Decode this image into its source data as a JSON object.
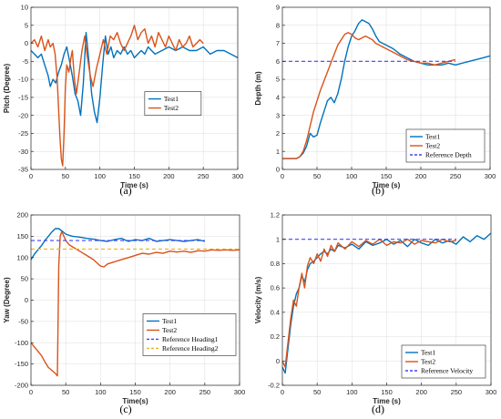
{
  "chart_data": [
    {
      "id": "a",
      "caption": "(a)",
      "type": "line",
      "xlabel": "Time (s)",
      "ylabel": "Pitch (Degree)",
      "xlim": [
        0,
        300
      ],
      "ylim": [
        -35,
        10
      ],
      "xticks": [
        0,
        50,
        100,
        150,
        200,
        250,
        300
      ],
      "yticks": [
        -35,
        -30,
        -25,
        -20,
        -15,
        -10,
        -5,
        0,
        5,
        10
      ],
      "grid": true,
      "legend": "center-right",
      "series": [
        {
          "name": "Test1",
          "color": "#0072BD",
          "style": "solid",
          "x": [
            0,
            5,
            10,
            15,
            20,
            25,
            28,
            32,
            36,
            40,
            44,
            48,
            52,
            56,
            60,
            64,
            68,
            72,
            76,
            80,
            84,
            88,
            92,
            96,
            100,
            104,
            108,
            112,
            116,
            120,
            125,
            130,
            135,
            140,
            145,
            150,
            155,
            160,
            165,
            170,
            175,
            180,
            190,
            200,
            210,
            220,
            230,
            240,
            250,
            260,
            270,
            280,
            290,
            300
          ],
          "y": [
            -2,
            -3,
            -4,
            -3,
            -6,
            -9,
            -12,
            -10,
            -11,
            -8,
            -6,
            -3,
            -1,
            -5,
            -9,
            -14,
            -16,
            -20,
            -11,
            3,
            -5,
            -14,
            -19,
            -22,
            -15,
            -6,
            2,
            -3,
            -1,
            -4,
            -2,
            -3,
            -1,
            -3,
            -2,
            -4,
            -3,
            -2,
            -3,
            -1,
            -2,
            -3,
            -2,
            -1,
            -2,
            -1,
            -2,
            -2,
            -1,
            -3,
            -2,
            -2,
            -3,
            -4
          ]
        },
        {
          "name": "Test2",
          "color": "#D95319",
          "style": "solid",
          "x": [
            0,
            5,
            10,
            15,
            20,
            25,
            28,
            32,
            35,
            38,
            40,
            42,
            44,
            46,
            48,
            50,
            52,
            55,
            58,
            60,
            63,
            66,
            70,
            74,
            78,
            82,
            86,
            90,
            95,
            100,
            105,
            110,
            115,
            120,
            125,
            130,
            135,
            140,
            145,
            150,
            155,
            160,
            165,
            170,
            175,
            180,
            185,
            190,
            195,
            200,
            205,
            210,
            215,
            220,
            225,
            230,
            235,
            240,
            245,
            250
          ],
          "y": [
            0,
            1,
            -1,
            2,
            -2,
            1,
            -1,
            0,
            -3,
            -10,
            -18,
            -26,
            -32,
            -34,
            -25,
            -12,
            -6,
            -8,
            -4,
            -2,
            -10,
            -14,
            -8,
            -2,
            2,
            -4,
            -9,
            -12,
            -7,
            -3,
            1,
            -3,
            2,
            1,
            3,
            0,
            -2,
            0,
            2,
            5,
            1,
            3,
            4,
            0,
            2,
            -1,
            3,
            1,
            -1,
            2,
            0,
            -2,
            1,
            -1,
            0,
            2,
            -1,
            0,
            1,
            0
          ]
        }
      ]
    },
    {
      "id": "b",
      "caption": "(b)",
      "type": "line",
      "xlabel": "Time (s)",
      "ylabel": "Depth (m)",
      "xlim": [
        0,
        300
      ],
      "ylim": [
        0,
        9
      ],
      "xticks": [
        0,
        50,
        100,
        150,
        200,
        250,
        300
      ],
      "yticks": [
        0,
        1,
        2,
        3,
        4,
        5,
        6,
        7,
        8,
        9
      ],
      "grid": true,
      "legend": "bottom-right",
      "series": [
        {
          "name": "Test1",
          "color": "#0072BD",
          "style": "solid",
          "x": [
            0,
            10,
            20,
            25,
            30,
            35,
            40,
            45,
            50,
            55,
            60,
            65,
            70,
            75,
            80,
            85,
            90,
            95,
            100,
            105,
            110,
            115,
            120,
            125,
            130,
            135,
            140,
            145,
            150,
            160,
            170,
            180,
            190,
            200,
            210,
            220,
            230,
            240,
            250,
            260,
            270,
            280,
            290,
            300
          ],
          "y": [
            0.6,
            0.6,
            0.6,
            0.7,
            0.9,
            1.3,
            2.0,
            1.8,
            1.9,
            2.6,
            3.2,
            3.8,
            4.0,
            3.7,
            4.2,
            5.0,
            6.0,
            6.8,
            7.4,
            7.7,
            8.1,
            8.3,
            8.2,
            8.1,
            7.8,
            7.4,
            7.1,
            7.0,
            6.9,
            6.7,
            6.4,
            6.2,
            6.0,
            5.9,
            5.8,
            5.8,
            5.8,
            5.9,
            5.8,
            5.9,
            6.0,
            6.1,
            6.2,
            6.3
          ]
        },
        {
          "name": "Test2",
          "color": "#D95319",
          "style": "solid",
          "x": [
            0,
            10,
            20,
            25,
            30,
            35,
            40,
            45,
            50,
            55,
            60,
            65,
            70,
            75,
            80,
            85,
            90,
            95,
            100,
            105,
            110,
            115,
            120,
            125,
            130,
            135,
            140,
            145,
            150,
            160,
            170,
            180,
            190,
            200,
            210,
            220,
            230,
            240,
            250
          ],
          "y": [
            0.6,
            0.6,
            0.6,
            0.7,
            1.0,
            1.6,
            2.4,
            3.2,
            3.8,
            4.4,
            4.9,
            5.4,
            5.9,
            6.4,
            6.9,
            7.2,
            7.5,
            7.6,
            7.5,
            7.3,
            7.2,
            7.3,
            7.4,
            7.3,
            7.2,
            7.0,
            6.9,
            6.8,
            6.7,
            6.5,
            6.3,
            6.1,
            6.0,
            5.9,
            5.9,
            5.8,
            5.9,
            6.0,
            6.1
          ]
        },
        {
          "name": "Reference Depth",
          "color": "#4040FF",
          "style": "dashed",
          "x": [
            0,
            250
          ],
          "y": [
            6,
            6
          ]
        }
      ]
    },
    {
      "id": "c",
      "caption": "(c)",
      "type": "line",
      "xlabel": "Time(s)",
      "ylabel": "Yaw (Degree)",
      "xlim": [
        0,
        300
      ],
      "ylim": [
        -200,
        200
      ],
      "xticks": [
        0,
        50,
        100,
        150,
        200,
        250,
        300
      ],
      "yticks": [
        -200,
        -150,
        -100,
        -50,
        0,
        50,
        100,
        150,
        200
      ],
      "grid": true,
      "legend": "center-right",
      "series": [
        {
          "name": "Test1",
          "color": "#0072BD",
          "style": "solid",
          "x": [
            0,
            5,
            10,
            15,
            20,
            25,
            30,
            35,
            40,
            45,
            50,
            55,
            60,
            70,
            80,
            90,
            100,
            110,
            120,
            130,
            140,
            150,
            160,
            170,
            180,
            190,
            200,
            210,
            220,
            230,
            240,
            250
          ],
          "y": [
            95,
            108,
            118,
            128,
            140,
            150,
            160,
            168,
            168,
            162,
            155,
            152,
            150,
            148,
            145,
            143,
            140,
            138,
            142,
            145,
            138,
            142,
            140,
            145,
            138,
            140,
            142,
            140,
            138,
            140,
            142,
            138
          ]
        },
        {
          "name": "Test2",
          "color": "#D95319",
          "style": "solid",
          "x": [
            0,
            5,
            10,
            15,
            20,
            25,
            30,
            35,
            38,
            40,
            42,
            44,
            46,
            50,
            55,
            60,
            70,
            80,
            90,
            100,
            105,
            110,
            120,
            130,
            140,
            150,
            160,
            170,
            180,
            190,
            200,
            210,
            220,
            230,
            240,
            250,
            260,
            270,
            280,
            290,
            300
          ],
          "y": [
            -100,
            -110,
            -120,
            -130,
            -145,
            -158,
            -165,
            -172,
            -178,
            80,
            150,
            160,
            155,
            140,
            130,
            125,
            115,
            105,
            95,
            80,
            78,
            85,
            90,
            95,
            100,
            105,
            110,
            108,
            112,
            110,
            115,
            113,
            115,
            112,
            116,
            115,
            118,
            117,
            118,
            117,
            118
          ]
        },
        {
          "name": "Reference Heading1",
          "color": "#4040FF",
          "style": "dashed",
          "x": [
            0,
            250
          ],
          "y": [
            140,
            140
          ]
        },
        {
          "name": "Reference Heading2",
          "color": "#EDB120",
          "style": "dashed",
          "x": [
            0,
            300
          ],
          "y": [
            120,
            120
          ]
        }
      ]
    },
    {
      "id": "d",
      "caption": "(d)",
      "type": "line",
      "xlabel": "Time (s)",
      "ylabel": "Velocity (m/s)",
      "xlim": [
        0,
        300
      ],
      "ylim": [
        -0.2,
        1.2
      ],
      "xticks": [
        0,
        50,
        100,
        150,
        200,
        250,
        300
      ],
      "yticks": [
        -0.2,
        0,
        0.2,
        0.4,
        0.6,
        0.8,
        1,
        1.2
      ],
      "grid": true,
      "legend": "bottom-right",
      "series": [
        {
          "name": "Test1",
          "color": "#0072BD",
          "style": "solid",
          "x": [
            0,
            4,
            8,
            12,
            16,
            20,
            24,
            28,
            32,
            36,
            40,
            45,
            50,
            55,
            60,
            65,
            70,
            75,
            80,
            90,
            100,
            110,
            120,
            130,
            140,
            150,
            160,
            170,
            180,
            190,
            200,
            210,
            220,
            230,
            240,
            250,
            260,
            270,
            280,
            290,
            300
          ],
          "y": [
            -0.05,
            -0.1,
            0.1,
            0.3,
            0.45,
            0.55,
            0.6,
            0.7,
            0.65,
            0.75,
            0.8,
            0.82,
            0.85,
            0.88,
            0.9,
            0.88,
            0.92,
            0.9,
            0.95,
            0.93,
            0.96,
            0.92,
            0.98,
            0.95,
            0.97,
            1.0,
            0.96,
            0.99,
            0.94,
            1.0,
            0.97,
            0.95,
            1.0,
            0.97,
            0.99,
            0.96,
            1.02,
            0.98,
            1.03,
            1.0,
            1.05
          ]
        },
        {
          "name": "Test2",
          "color": "#D95319",
          "style": "solid",
          "x": [
            0,
            4,
            8,
            12,
            16,
            20,
            24,
            28,
            32,
            36,
            40,
            45,
            50,
            55,
            60,
            65,
            70,
            75,
            80,
            90,
            100,
            110,
            120,
            130,
            140,
            150,
            160,
            170,
            180,
            190,
            200,
            210,
            220,
            230,
            240,
            250
          ],
          "y": [
            0.0,
            -0.05,
            0.15,
            0.35,
            0.5,
            0.45,
            0.6,
            0.72,
            0.6,
            0.78,
            0.85,
            0.8,
            0.88,
            0.82,
            0.92,
            0.86,
            0.95,
            0.9,
            0.97,
            0.92,
            0.98,
            0.94,
            0.99,
            0.96,
            1.0,
            0.95,
            0.98,
            0.97,
            1.0,
            0.96,
            0.99,
            0.98,
            0.97,
            1.0,
            0.98,
            0.99
          ]
        },
        {
          "name": "Reference Velocity",
          "color": "#4040FF",
          "style": "dashed",
          "x": [
            0,
            250
          ],
          "y": [
            1,
            1
          ]
        }
      ]
    }
  ]
}
